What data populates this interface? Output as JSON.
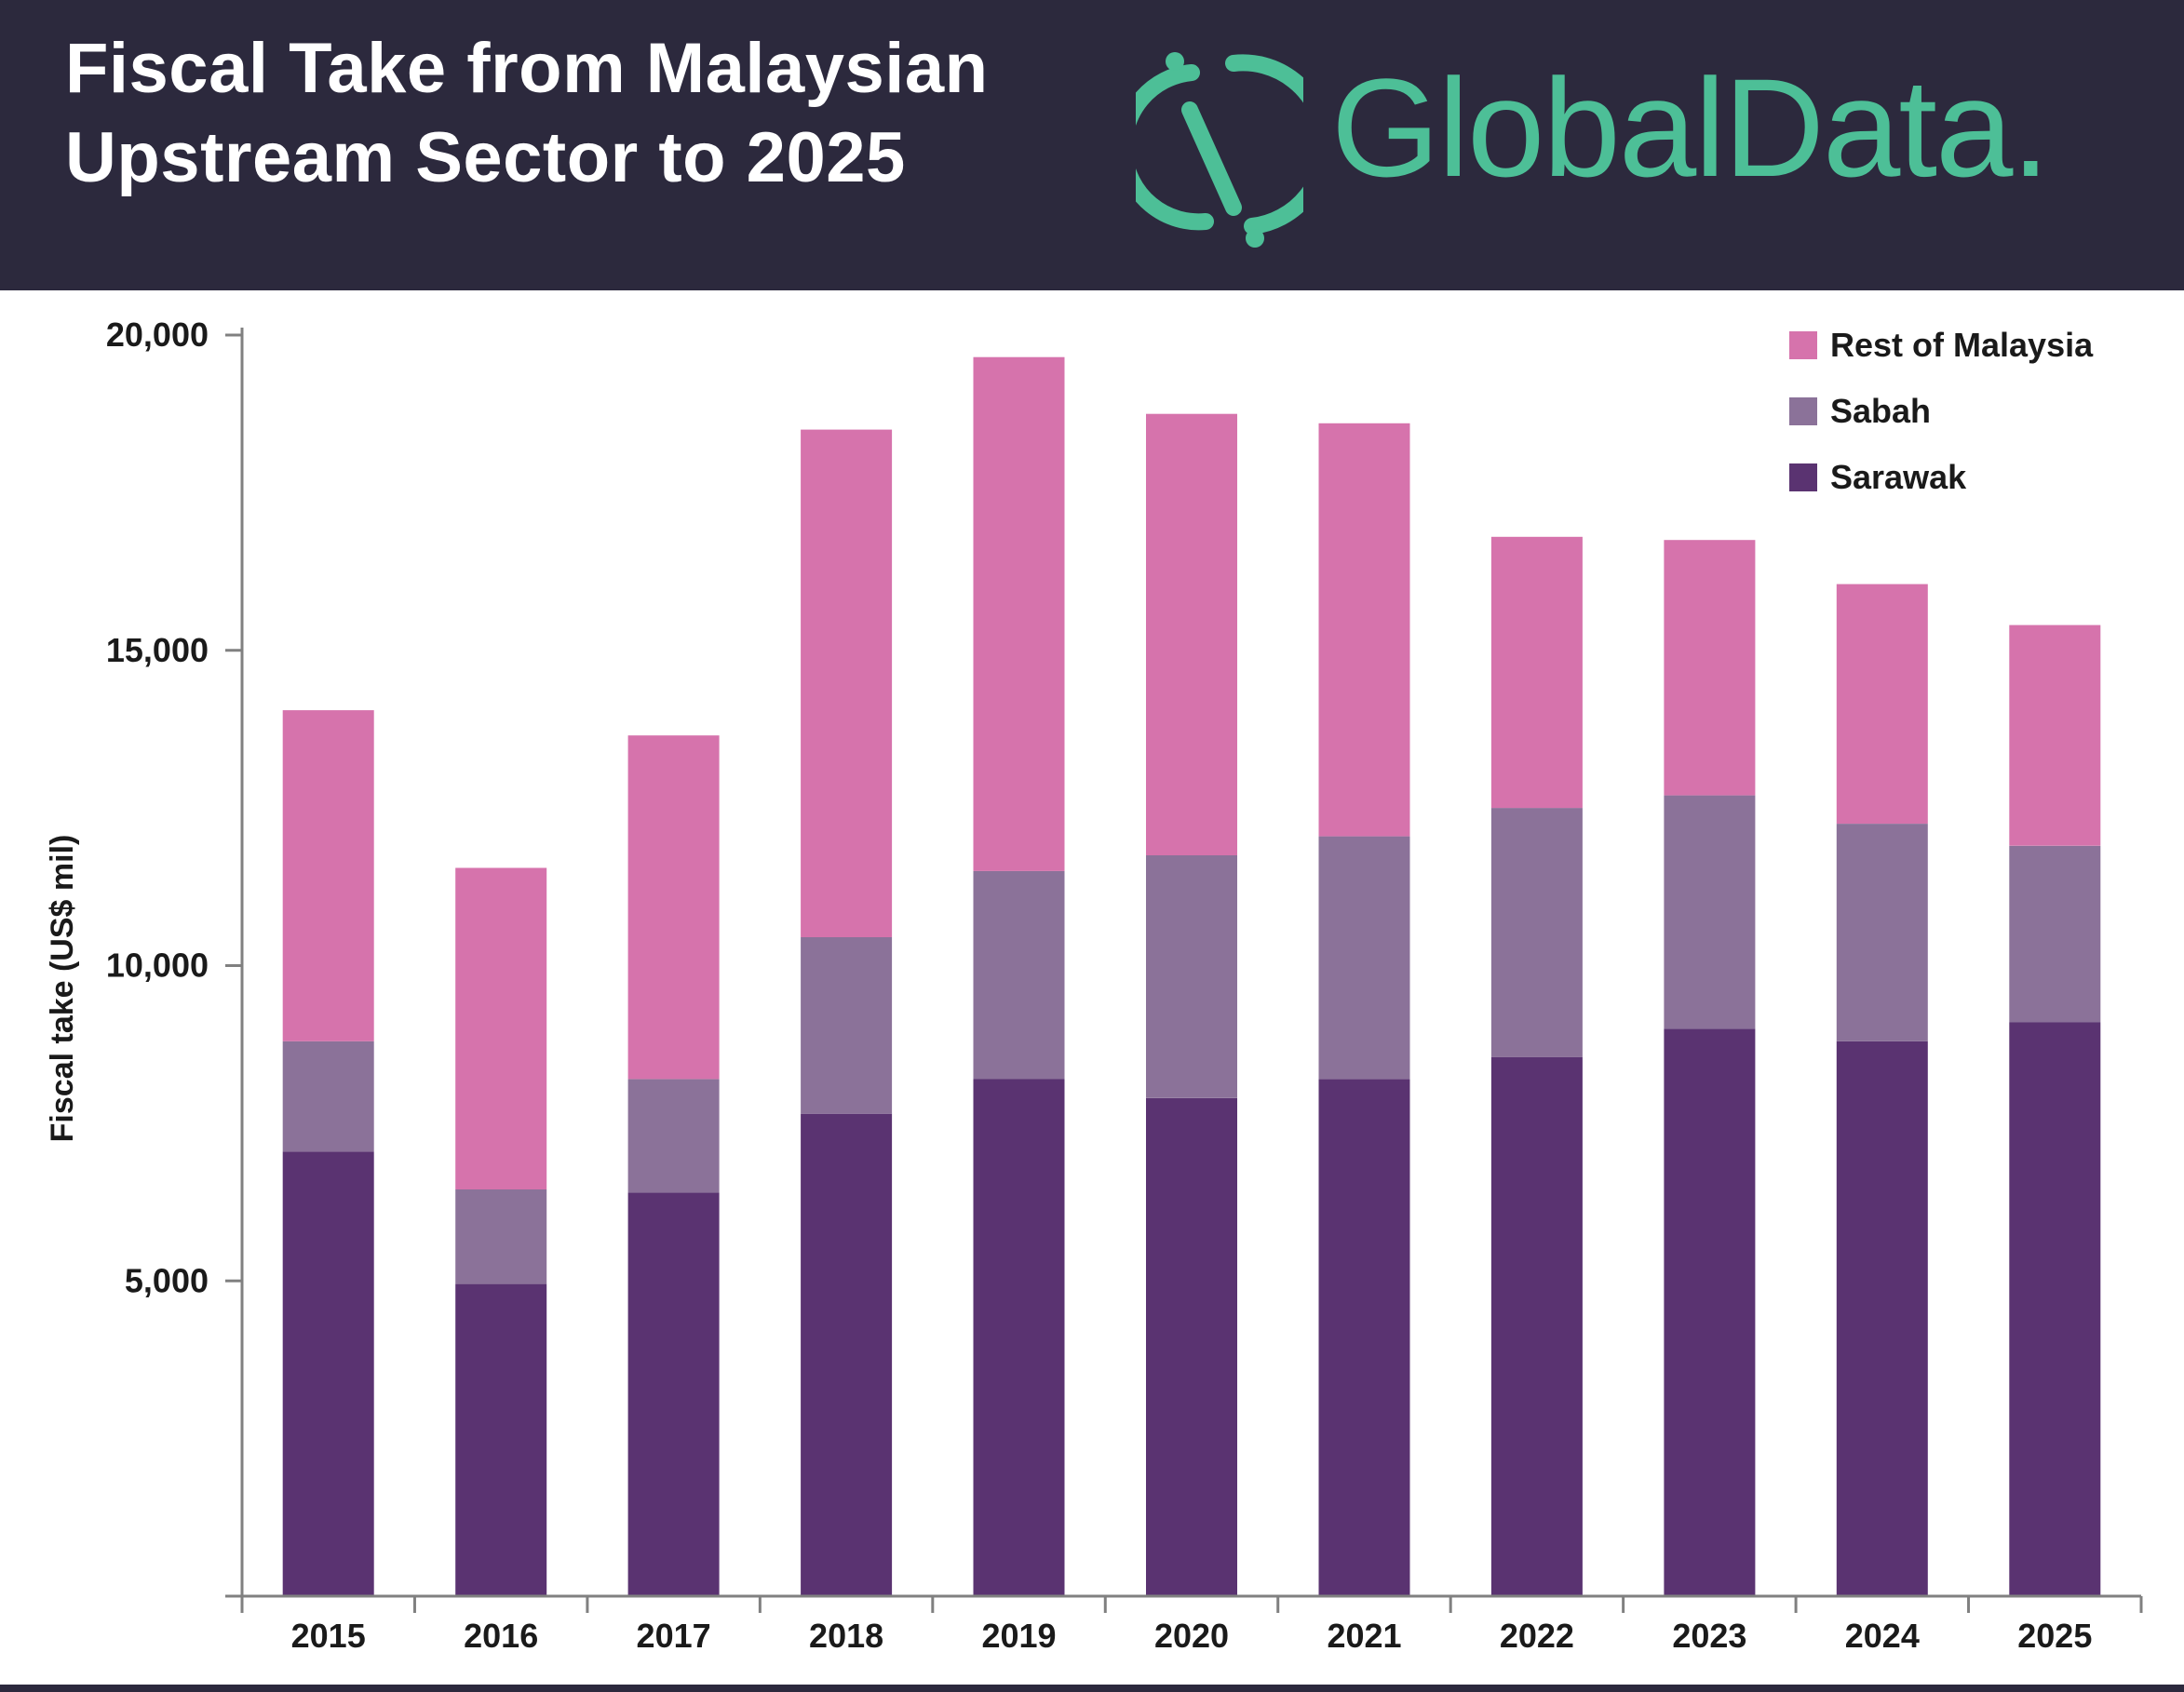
{
  "header": {
    "title_line1": "Fiscal Take from Malaysian",
    "title_line2": "Upstream Sector to 2025",
    "brand": "GlobalData.",
    "brand_color": "#4dbf97",
    "background_color": "#2c293d"
  },
  "chart_data": {
    "type": "bar",
    "stacked": true,
    "categories": [
      "2015",
      "2016",
      "2017",
      "2018",
      "2019",
      "2020",
      "2021",
      "2022",
      "2023",
      "2024",
      "2025"
    ],
    "series": [
      {
        "name": "Sarawak",
        "color": "#5a3371",
        "values": [
          7050,
          4950,
          6400,
          7650,
          8200,
          7900,
          8200,
          8550,
          9000,
          8800,
          9100
        ]
      },
      {
        "name": "Sabah",
        "color": "#8b7299",
        "values": [
          1750,
          1500,
          1800,
          2800,
          3300,
          3850,
          3850,
          3950,
          3700,
          3450,
          2800
        ]
      },
      {
        "name": "Rest of Malaysia",
        "color": "#d673ac",
        "values": [
          5250,
          5100,
          5450,
          8050,
          8150,
          7000,
          6550,
          4300,
          4050,
          3800,
          3500
        ]
      }
    ],
    "title": "",
    "xlabel": "",
    "ylabel": "Fiscal take (US$ mil)",
    "ylim": [
      0,
      20000
    ],
    "yticks": [
      5000,
      10000,
      15000,
      20000
    ],
    "ytick_labels": [
      "5,000",
      "10,000",
      "15,000",
      "20,000"
    ],
    "grid": false,
    "legend_position": "top-right",
    "legend_order": [
      "Rest of Malaysia",
      "Sabah",
      "Sarawak"
    ]
  }
}
